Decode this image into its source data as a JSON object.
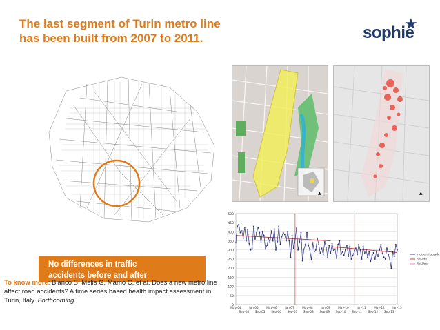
{
  "slide": {
    "title_line1": "The last segment of Turin metro line",
    "title_line2": "has been built from 2007 to 2011.",
    "brand": "sophie",
    "banner_line1": "No differences in traffic",
    "banner_line2": "accidents before and after",
    "cite_label": "To know more",
    "cite_text_a": ": Bianco S, Melis G, Mamo C, et al. Does a new metro line affect road accidents? A time series based health impact assessment in Turin, Italy. ",
    "cite_text_b": "Forthcoming",
    "cite_text_c": ".",
    "accent": "#e07b1a"
  },
  "chart_data": {
    "type": "line",
    "ylim": [
      0,
      500
    ],
    "yticks": [
      "500",
      "450",
      "400",
      "350",
      "300",
      "250",
      "200",
      "150",
      "100",
      "50",
      "0"
    ],
    "xticks_top": [
      "May-04",
      "Jan-05",
      "May-06",
      "Jan-07",
      "May-08",
      "Jan-09",
      "May-10",
      "Jan-11",
      "May-12",
      "Jan-13"
    ],
    "xticks_bottom": [
      "Sep-04",
      "Sep-05",
      "Sep-06",
      "Sep-07",
      "Sep-08",
      "Sep-09",
      "Sep-10",
      "Sep-11",
      "Sep-12",
      "Sep-13"
    ],
    "legend": [
      "Incidenti stradali",
      "Ref-Pre",
      "Ref-Post"
    ],
    "series": [
      {
        "name": "Incidenti stradali",
        "color": "#2b2f7a",
        "values": [
          340,
          430,
          440,
          395,
          405,
          365,
          425,
          350,
          410,
          335,
          300,
          310,
          430,
          360,
          395,
          425,
          395,
          340,
          400,
          380,
          305,
          325,
          365,
          340,
          405,
          350,
          415,
          300,
          345,
          430,
          330,
          375,
          395,
          385,
          350,
          400,
          350,
          260,
          380,
          310,
          355,
          420,
          300,
          345,
          395,
          240,
          305,
          330,
          395,
          325,
          300,
          245,
          340,
          290,
          300,
          365,
          330,
          280,
          310,
          275,
          345,
          315,
          260,
          325,
          280,
          335,
          295,
          305,
          255,
          330,
          350,
          275,
          290,
          270,
          300,
          325,
          265,
          320,
          250,
          270,
          290,
          310,
          275,
          330,
          300,
          250,
          320,
          280,
          300,
          260,
          290,
          235,
          270,
          285,
          250,
          290,
          265,
          300,
          330,
          280,
          260,
          250,
          310,
          275,
          245,
          200,
          290,
          265,
          330,
          300
        ]
      },
      {
        "name": "Ref-Pre",
        "color": "#c03030",
        "segments": [
          [
            0,
            65,
            380,
            350
          ],
          [
            65,
            110,
            318,
            286
          ]
        ]
      }
    ],
    "intervention_lines": [
      40,
      80
    ]
  }
}
